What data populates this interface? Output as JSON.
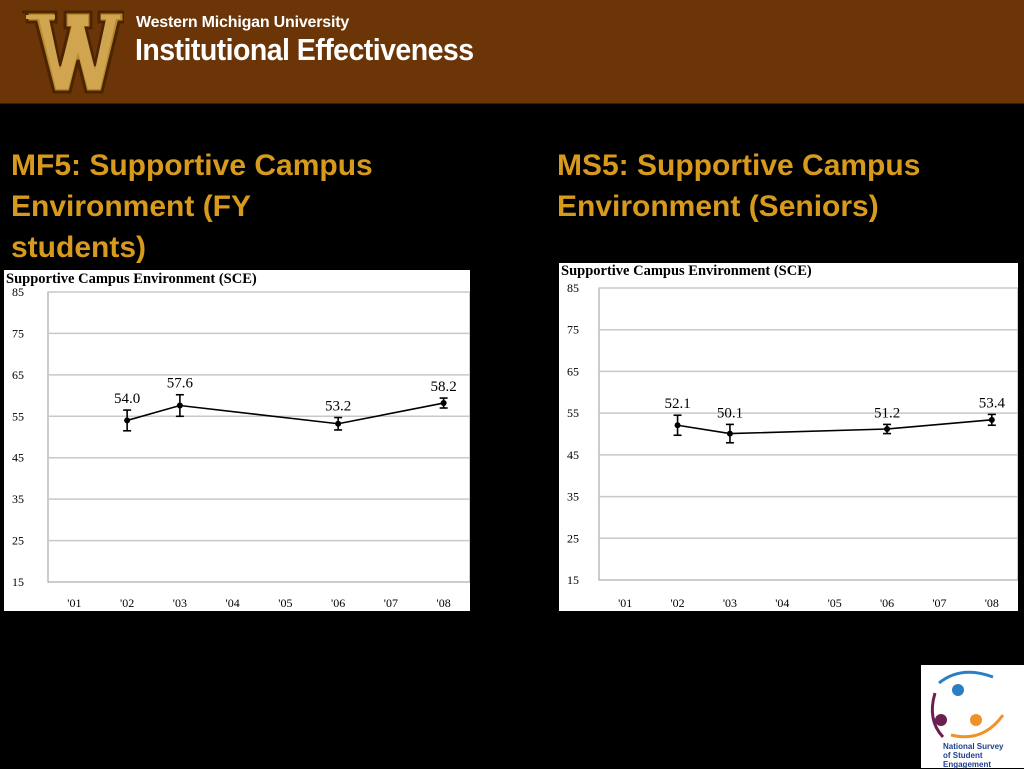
{
  "header": {
    "logo_letter": "W",
    "university": "Western Michigan University",
    "department": "Institutional Effectiveness"
  },
  "panels": {
    "left_title": "MF5: Supportive Campus Environment (FY students)",
    "right_title": "MS5: Supportive Campus Environment (Seniors)"
  },
  "chart_data": [
    {
      "type": "line",
      "title": "Supportive Campus Environment (SCE)",
      "categories": [
        "'01",
        "'02",
        "'03",
        "'04",
        "'05",
        "'06",
        "'07",
        "'08"
      ],
      "yticks": [
        85,
        75,
        65,
        55,
        45,
        35,
        25,
        15
      ],
      "ylim": [
        15,
        85
      ],
      "grid": true,
      "series": [
        {
          "points": [
            {
              "x": "'02",
              "y": 54.0,
              "lo": 51.5,
              "hi": 56.5,
              "label": "54.0"
            },
            {
              "x": "'03",
              "y": 57.6,
              "lo": 55.0,
              "hi": 60.2,
              "label": "57.6"
            },
            {
              "x": "'06",
              "y": 53.2,
              "lo": 51.7,
              "hi": 54.7,
              "label": "53.2"
            },
            {
              "x": "'08",
              "y": 58.2,
              "lo": 57.0,
              "hi": 59.4,
              "label": "58.2"
            }
          ]
        }
      ]
    },
    {
      "type": "line",
      "title": "Supportive Campus Environment (SCE)",
      "categories": [
        "'01",
        "'02",
        "'03",
        "'04",
        "'05",
        "'06",
        "'07",
        "'08"
      ],
      "yticks": [
        85,
        75,
        65,
        55,
        45,
        35,
        25,
        15
      ],
      "ylim": [
        15,
        85
      ],
      "grid": true,
      "series": [
        {
          "points": [
            {
              "x": "'02",
              "y": 52.1,
              "lo": 49.7,
              "hi": 54.5,
              "label": "52.1"
            },
            {
              "x": "'03",
              "y": 50.1,
              "lo": 47.9,
              "hi": 52.3,
              "label": "50.1"
            },
            {
              "x": "'06",
              "y": 51.2,
              "lo": 50.1,
              "hi": 52.3,
              "label": "51.2"
            },
            {
              "x": "'08",
              "y": 53.4,
              "lo": 52.1,
              "hi": 54.7,
              "label": "53.4"
            }
          ]
        }
      ]
    }
  ],
  "nsse": {
    "line1": "National Survey",
    "line2": "of Student Engagement"
  },
  "colors": {
    "header_bg": "#6b3508",
    "logo_gold": "#c99a3c",
    "title_gold": "#d89a1c",
    "nsse_blue": "#2a7fc4",
    "nsse_purple": "#6b1f4f",
    "nsse_orange": "#f0922a"
  }
}
